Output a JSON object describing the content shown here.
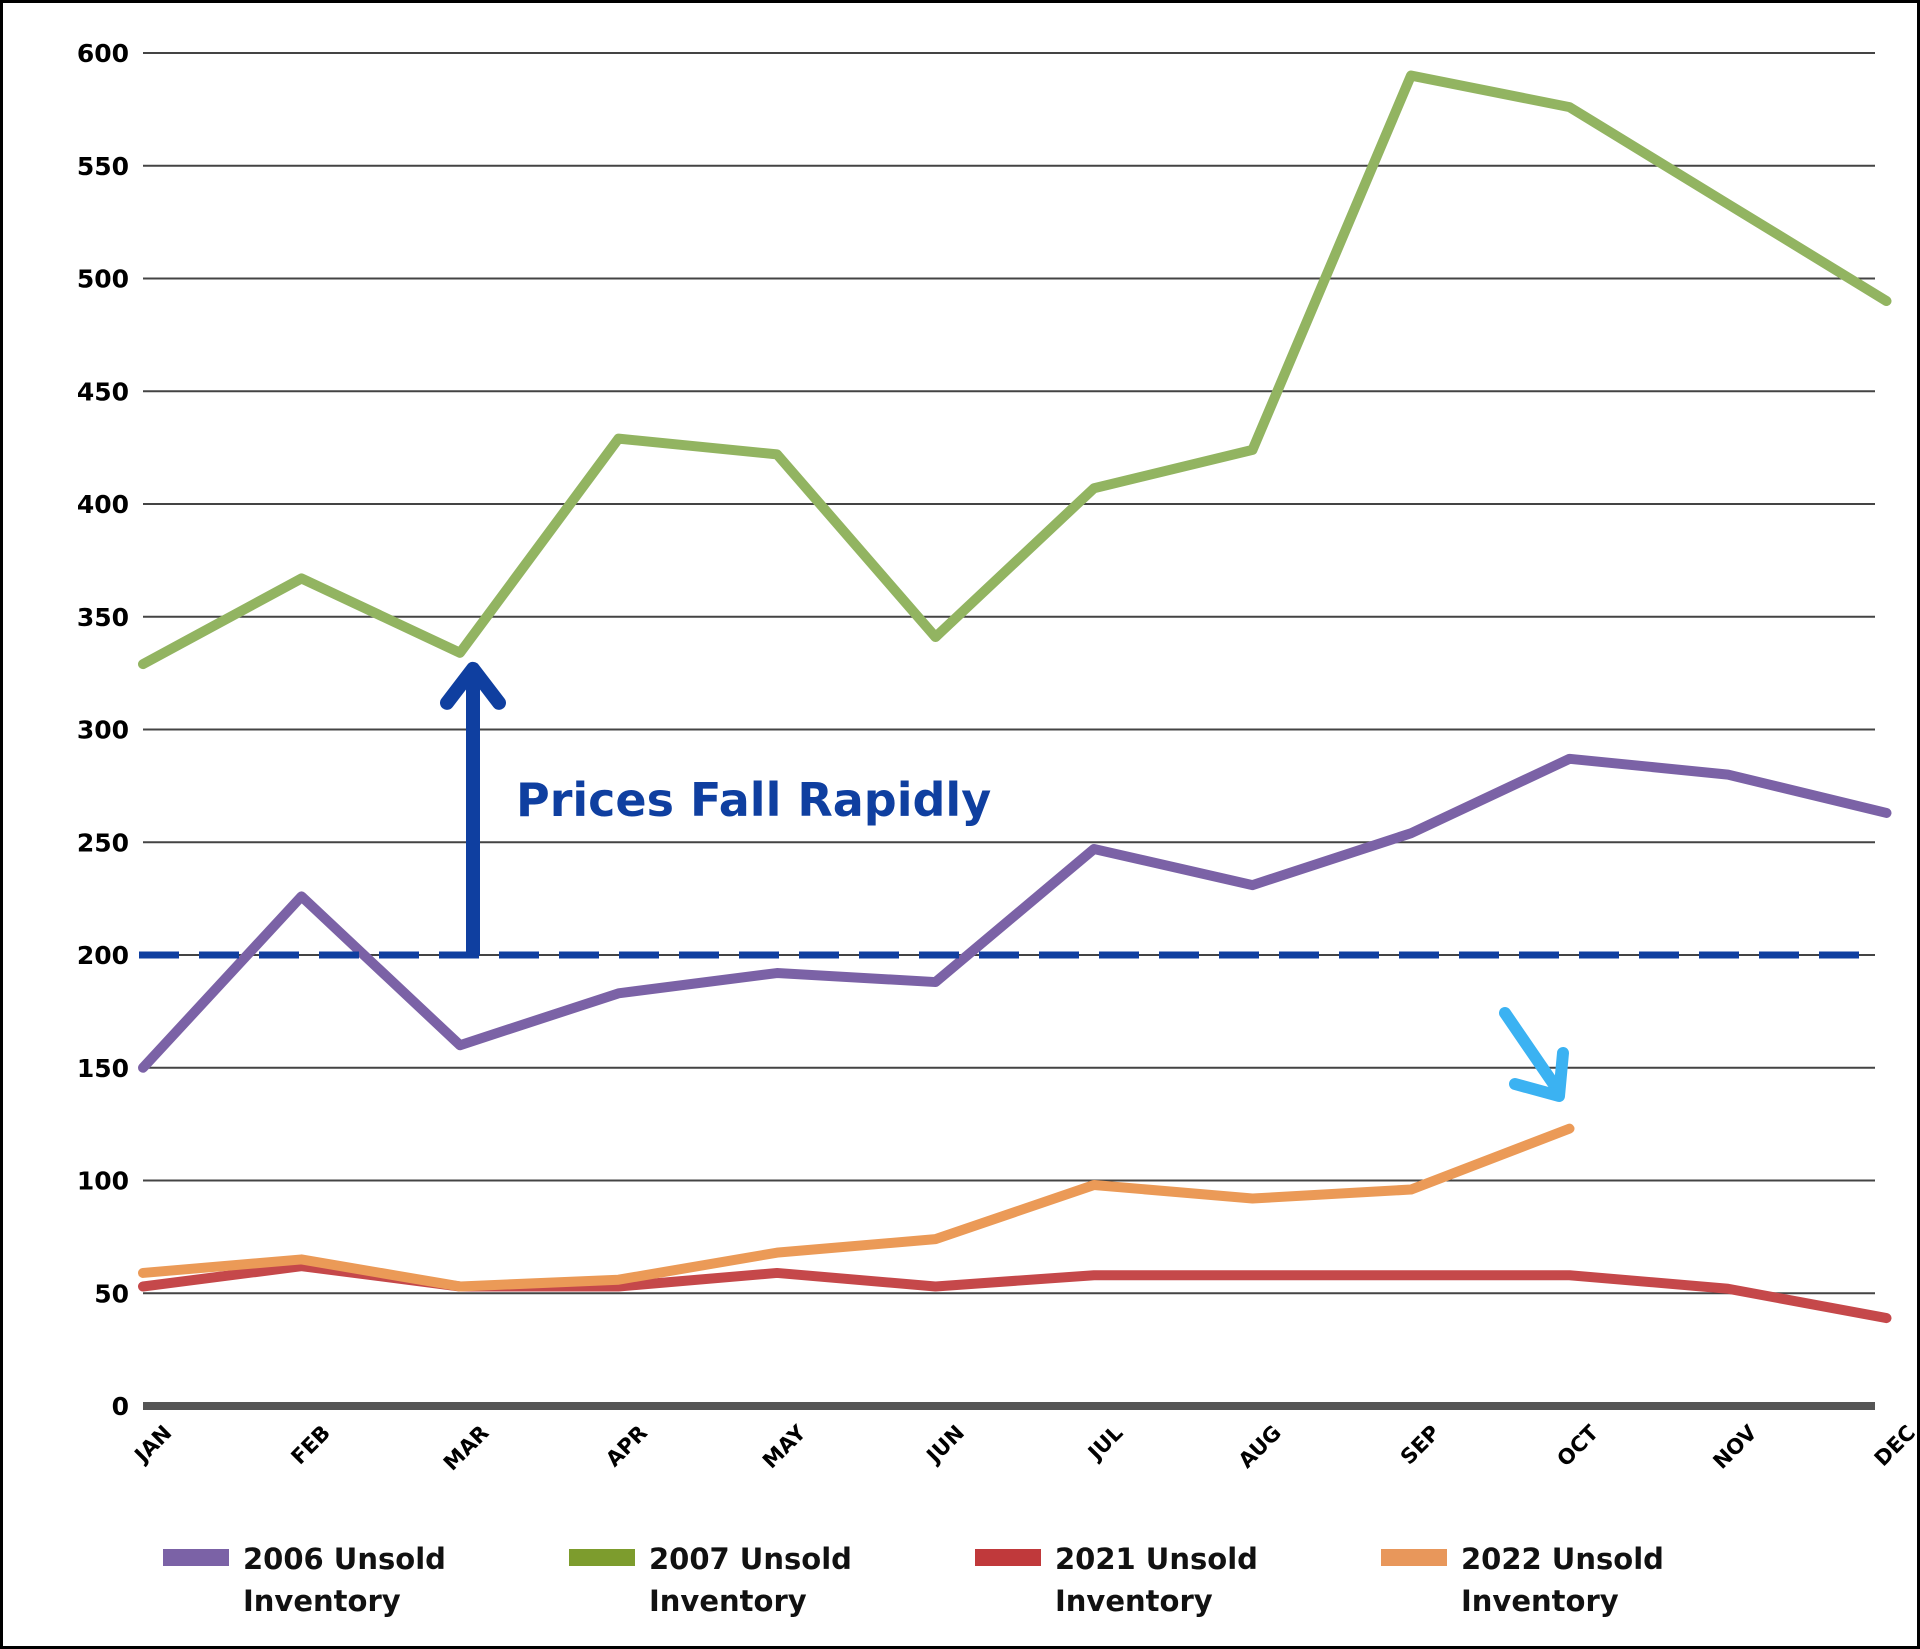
{
  "chart_data": {
    "type": "line",
    "title": "",
    "xlabel": "",
    "ylabel": "",
    "categories": [
      "JAN",
      "FEB",
      "MAR",
      "APR",
      "MAY",
      "JUN",
      "JUL",
      "AUG",
      "SEP",
      "OCT",
      "NOV",
      "DEC"
    ],
    "yticks": [
      0,
      50,
      100,
      150,
      200,
      250,
      300,
      350,
      400,
      450,
      500,
      550,
      600
    ],
    "ylim": [
      0,
      600
    ],
    "grid": true,
    "legend_position": "bottom",
    "series": [
      {
        "name": "2006 Unsold Inventory",
        "color": "#7b62a6",
        "points": [
          [
            0,
            150
          ],
          [
            1,
            226
          ],
          [
            2,
            160
          ],
          [
            3,
            183
          ],
          [
            4,
            192
          ],
          [
            5,
            188
          ],
          [
            6,
            247
          ],
          [
            7,
            231
          ],
          [
            8,
            254
          ],
          [
            9,
            287
          ],
          [
            10,
            280
          ],
          [
            11,
            263
          ]
        ]
      },
      {
        "name": "2007 Unsold Inventory",
        "color": "#92b461",
        "points": [
          [
            0,
            329
          ],
          [
            1,
            367
          ],
          [
            2,
            334
          ],
          [
            3,
            429
          ],
          [
            4,
            422
          ],
          [
            5,
            341
          ],
          [
            6,
            407
          ],
          [
            7,
            424
          ],
          [
            8,
            590
          ],
          [
            9,
            576
          ],
          [
            10,
            533
          ],
          [
            11,
            490
          ]
        ]
      },
      {
        "name": "2021 Unsold Inventory",
        "color": "#c5484a",
        "points": [
          [
            0,
            53
          ],
          [
            1,
            62
          ],
          [
            2,
            53
          ],
          [
            3,
            53
          ],
          [
            4,
            59
          ],
          [
            5,
            53
          ],
          [
            6,
            58
          ],
          [
            7,
            58
          ],
          [
            8,
            58
          ],
          [
            9,
            58
          ],
          [
            10,
            52
          ],
          [
            11,
            39
          ]
        ]
      },
      {
        "name": "2022 Unsold Inventory",
        "color": "#eb9a57",
        "points": [
          [
            0,
            59
          ],
          [
            1,
            65
          ],
          [
            2,
            53
          ],
          [
            3,
            56
          ],
          [
            4,
            68
          ],
          [
            5,
            74
          ],
          [
            6,
            98
          ],
          [
            7,
            92
          ],
          [
            8,
            96
          ],
          [
            9,
            123
          ]
        ]
      }
    ],
    "reference_line": {
      "value": 200,
      "style": "dashed",
      "color": "#0f3fa0"
    },
    "annotations": [
      {
        "text": "Prices Fall Rapidly",
        "color": "#0f3fa0"
      }
    ],
    "arrows": [
      {
        "name": "up-arrow",
        "color": "#0f3fa0",
        "from_y": 200,
        "to_y": 334,
        "at_x": 2
      },
      {
        "name": "down-right-arrow",
        "color": "#3bb2f2"
      }
    ]
  },
  "legend": [
    {
      "line1": "2006 Unsold",
      "line2": "Inventory",
      "color": "#7b62a6"
    },
    {
      "line1": "2007 Unsold",
      "line2": "Inventory",
      "color": "#7d9c2d"
    },
    {
      "line1": "2021 Unsold",
      "line2": "Inventory",
      "color": "#c0393b"
    },
    {
      "line1": "2022 Unsold",
      "line2": "Inventory",
      "color": "#e8975b"
    }
  ]
}
